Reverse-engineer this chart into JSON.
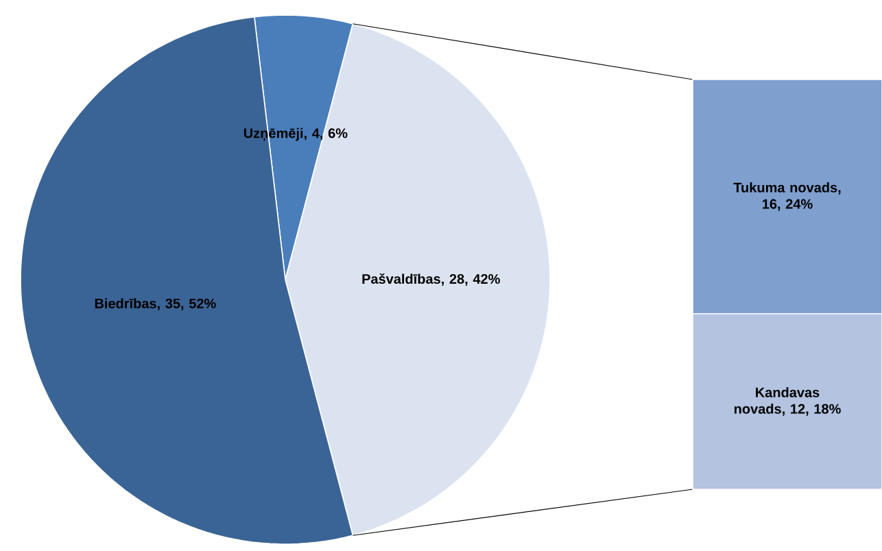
{
  "chart_data": [
    {
      "type": "pie",
      "categories": [
        "Uzņēmēji",
        "Pašvaldības",
        "Biedrības"
      ],
      "values": [
        4,
        28,
        35
      ],
      "colors": [
        "#4a7ebb",
        "#dce3f0",
        "#3b6496"
      ],
      "value_labels": [
        ", 4, 6%",
        ", 28, 42%",
        ", 35, 52%"
      ]
    },
    {
      "type": "bar",
      "stacked": true,
      "categories": [
        null
      ],
      "series": [
        {
          "name": "Kandavas novads",
          "color": "#b3c3e0",
          "values": [
            12
          ],
          "value_labels": [
            ", 12, 18%"
          ]
        },
        {
          "name": "Tukuma novads",
          "color": "#7f9fcf",
          "values": [
            16
          ],
          "value_labels": [
            ", 16, 24%"
          ]
        }
      ]
    }
  ]
}
